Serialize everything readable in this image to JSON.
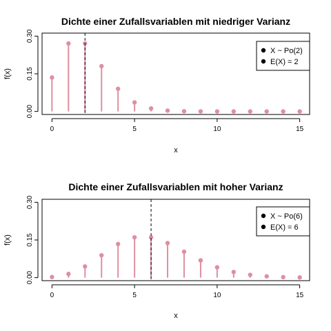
{
  "chart_data": [
    {
      "type": "stem",
      "title": "Dichte einer Zufallsvariablen mit niedriger Varianz",
      "xlabel": "x",
      "ylabel": "f(x)",
      "x": [
        0,
        1,
        2,
        3,
        4,
        5,
        6,
        7,
        8,
        9,
        10,
        11,
        12,
        13,
        14,
        15
      ],
      "values": [
        0.1353,
        0.2707,
        0.2707,
        0.1804,
        0.0902,
        0.0361,
        0.012,
        0.0034,
        0.0009,
        0.0002,
        0.0,
        0.0,
        0.0,
        0.0,
        0.0,
        0.0
      ],
      "xlim": [
        -0.6,
        15.6
      ],
      "ylim": [
        -0.012,
        0.312
      ],
      "xticks": [
        0,
        5,
        10,
        15
      ],
      "yticks": [
        0.0,
        0.15,
        0.3
      ],
      "ytick_labels": [
        "0.00",
        "0.15",
        "0.30"
      ],
      "mean_line": 2,
      "legend": [
        "X ~ Po(2)",
        "E(X) = 2"
      ],
      "legend_position": "top-right",
      "stem_color": "#de8fa0",
      "grid": false
    },
    {
      "type": "stem",
      "title": "Dichte einer Zufallsvariablen mit hoher Varianz",
      "xlabel": "x",
      "ylabel": "f(x)",
      "x": [
        0,
        1,
        2,
        3,
        4,
        5,
        6,
        7,
        8,
        9,
        10,
        11,
        12,
        13,
        14,
        15
      ],
      "values": [
        0.0025,
        0.0149,
        0.0446,
        0.0892,
        0.1339,
        0.1606,
        0.1606,
        0.1377,
        0.1033,
        0.0688,
        0.0413,
        0.0225,
        0.0113,
        0.0052,
        0.0022,
        0.0009
      ],
      "xlim": [
        -0.6,
        15.6
      ],
      "ylim": [
        -0.012,
        0.312
      ],
      "xticks": [
        0,
        5,
        10,
        15
      ],
      "yticks": [
        0.0,
        0.15,
        0.3
      ],
      "ytick_labels": [
        "0.00",
        "0.15",
        "0.30"
      ],
      "mean_line": 6,
      "legend": [
        "X ~ Po(6)",
        "E(X) = 6"
      ],
      "legend_position": "top-right",
      "stem_color": "#de8fa0",
      "grid": false
    }
  ]
}
